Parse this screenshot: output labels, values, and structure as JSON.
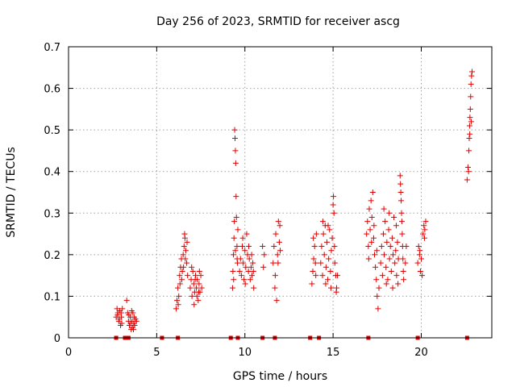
{
  "chart_data": {
    "type": "scatter",
    "title": "Day 256 of 2023, SRMTID for receiver ascg",
    "xlabel": "GPS time / hours",
    "ylabel": "SRMTID / TECUs",
    "xlim": [
      0,
      24
    ],
    "ylim": [
      0,
      0.7
    ],
    "xticks": [
      0,
      5,
      10,
      15,
      20
    ],
    "xtick_labels": [
      "0",
      "5",
      "10",
      "15",
      "20"
    ],
    "yticks": [
      0,
      0.1,
      0.2,
      0.3,
      0.4,
      0.5,
      0.6,
      0.7
    ],
    "ytick_labels": [
      "0",
      "0.1",
      "0.2",
      "0.3",
      "0.4",
      "0.5",
      "0.6",
      "0.7"
    ],
    "grid": true,
    "marker": "plus",
    "color": "#e00000",
    "zero_markers": [
      2.7,
      3.2,
      3.4,
      5.3,
      6.2,
      9.2,
      9.6,
      11.0,
      11.7,
      13.7,
      14.2,
      17.0,
      19.8,
      22.6
    ],
    "series": [
      {
        "name": "SRMTID",
        "points": [
          [
            2.7,
            0.05
          ],
          [
            2.75,
            0.07
          ],
          [
            2.8,
            0.06
          ],
          [
            2.85,
            0.04
          ],
          [
            2.9,
            0.065
          ],
          [
            2.95,
            0.03
          ],
          [
            3.0,
            0.05
          ],
          [
            3.05,
            0.07
          ],
          [
            2.78,
            0.055
          ],
          [
            2.88,
            0.045
          ],
          [
            2.98,
            0.06
          ],
          [
            3.02,
            0.035
          ],
          [
            3.3,
            0.09
          ],
          [
            3.35,
            0.06
          ],
          [
            3.4,
            0.04
          ],
          [
            3.45,
            0.03
          ],
          [
            3.5,
            0.05
          ],
          [
            3.55,
            0.02
          ],
          [
            3.6,
            0.04
          ],
          [
            3.65,
            0.06
          ],
          [
            3.7,
            0.035
          ],
          [
            3.75,
            0.03
          ],
          [
            3.8,
            0.045
          ],
          [
            3.85,
            0.04
          ],
          [
            3.42,
            0.055
          ],
          [
            3.52,
            0.035
          ],
          [
            3.62,
            0.025
          ],
          [
            3.72,
            0.05
          ],
          [
            3.58,
            0.065
          ],
          [
            3.68,
            0.02
          ],
          [
            6.1,
            0.07
          ],
          [
            6.15,
            0.09
          ],
          [
            6.2,
            0.12
          ],
          [
            6.25,
            0.1
          ],
          [
            6.3,
            0.15
          ],
          [
            6.35,
            0.17
          ],
          [
            6.4,
            0.19
          ],
          [
            6.45,
            0.16
          ],
          [
            6.5,
            0.2
          ],
          [
            6.55,
            0.22
          ],
          [
            6.6,
            0.24
          ],
          [
            6.65,
            0.21
          ],
          [
            6.7,
            0.18
          ],
          [
            6.75,
            0.15
          ],
          [
            6.22,
            0.08
          ],
          [
            6.32,
            0.13
          ],
          [
            6.42,
            0.14
          ],
          [
            6.52,
            0.17
          ],
          [
            6.62,
            0.19
          ],
          [
            6.58,
            0.25
          ],
          [
            6.72,
            0.23
          ],
          [
            6.9,
            0.12
          ],
          [
            6.95,
            0.14
          ],
          [
            7.0,
            0.1
          ],
          [
            7.05,
            0.16
          ],
          [
            7.1,
            0.13
          ],
          [
            7.15,
            0.11
          ],
          [
            7.2,
            0.15
          ],
          [
            7.25,
            0.12
          ],
          [
            7.3,
            0.14
          ],
          [
            7.35,
            0.09
          ],
          [
            7.4,
            0.13
          ],
          [
            7.45,
            0.11
          ],
          [
            7.5,
            0.15
          ],
          [
            7.55,
            0.12
          ],
          [
            6.98,
            0.17
          ],
          [
            7.12,
            0.08
          ],
          [
            7.28,
            0.1
          ],
          [
            7.42,
            0.16
          ],
          [
            7.18,
            0.14
          ],
          [
            7.38,
            0.11
          ],
          [
            9.3,
            0.12
          ],
          [
            9.32,
            0.16
          ],
          [
            9.35,
            0.2
          ],
          [
            9.38,
            0.24
          ],
          [
            9.4,
            0.28
          ],
          [
            9.42,
            0.5
          ],
          [
            9.44,
            0.48
          ],
          [
            9.46,
            0.45
          ],
          [
            9.48,
            0.42
          ],
          [
            9.5,
            0.34
          ],
          [
            9.52,
            0.29
          ],
          [
            9.55,
            0.22
          ],
          [
            9.58,
            0.18
          ],
          [
            9.6,
            0.26
          ],
          [
            9.36,
            0.14
          ],
          [
            9.46,
            0.21
          ],
          [
            9.56,
            0.19
          ],
          [
            9.7,
            0.16
          ],
          [
            9.75,
            0.19
          ],
          [
            9.8,
            0.15
          ],
          [
            9.85,
            0.22
          ],
          [
            9.9,
            0.18
          ],
          [
            9.95,
            0.14
          ],
          [
            10.0,
            0.21
          ],
          [
            10.05,
            0.17
          ],
          [
            10.1,
            0.25
          ],
          [
            10.15,
            0.2
          ],
          [
            10.2,
            0.16
          ],
          [
            10.25,
            0.19
          ],
          [
            10.3,
            0.14
          ],
          [
            10.35,
            0.17
          ],
          [
            10.4,
            0.15
          ],
          [
            10.45,
            0.18
          ],
          [
            10.5,
            0.12
          ],
          [
            9.88,
            0.24
          ],
          [
            10.02,
            0.13
          ],
          [
            10.22,
            0.22
          ],
          [
            10.38,
            0.2
          ],
          [
            10.48,
            0.16
          ],
          [
            11.0,
            0.22
          ],
          [
            11.05,
            0.17
          ],
          [
            11.1,
            0.2
          ],
          [
            11.6,
            0.18
          ],
          [
            11.65,
            0.22
          ],
          [
            11.7,
            0.12
          ],
          [
            11.75,
            0.25
          ],
          [
            11.8,
            0.09
          ],
          [
            11.85,
            0.2
          ],
          [
            11.9,
            0.28
          ],
          [
            11.95,
            0.23
          ],
          [
            12.0,
            0.21
          ],
          [
            11.72,
            0.15
          ],
          [
            11.88,
            0.18
          ],
          [
            11.98,
            0.27
          ],
          [
            13.8,
            0.13
          ],
          [
            13.85,
            0.16
          ],
          [
            13.9,
            0.19
          ],
          [
            13.95,
            0.22
          ],
          [
            14.0,
            0.18
          ],
          [
            14.05,
            0.25
          ],
          [
            13.88,
            0.24
          ],
          [
            14.02,
            0.15
          ],
          [
            14.3,
            0.18
          ],
          [
            14.35,
            0.22
          ],
          [
            14.4,
            0.15
          ],
          [
            14.45,
            0.25
          ],
          [
            14.5,
            0.2
          ],
          [
            14.55,
            0.27
          ],
          [
            14.6,
            0.17
          ],
          [
            14.65,
            0.23
          ],
          [
            14.7,
            0.14
          ],
          [
            14.75,
            0.19
          ],
          [
            14.8,
            0.26
          ],
          [
            14.85,
            0.16
          ],
          [
            14.9,
            0.21
          ],
          [
            14.95,
            0.24
          ],
          [
            15.0,
            0.32
          ],
          [
            15.05,
            0.3
          ],
          [
            15.1,
            0.18
          ],
          [
            15.15,
            0.15
          ],
          [
            15.2,
            0.12
          ],
          [
            15.25,
            0.15
          ],
          [
            14.42,
            0.28
          ],
          [
            14.58,
            0.13
          ],
          [
            14.72,
            0.27
          ],
          [
            14.88,
            0.12
          ],
          [
            15.02,
            0.34
          ],
          [
            15.08,
            0.22
          ],
          [
            15.18,
            0.11
          ],
          [
            16.9,
            0.25
          ],
          [
            16.95,
            0.28
          ],
          [
            17.0,
            0.22
          ],
          [
            17.05,
            0.31
          ],
          [
            17.1,
            0.26
          ],
          [
            17.15,
            0.33
          ],
          [
            17.2,
            0.29
          ],
          [
            17.25,
            0.35
          ],
          [
            17.3,
            0.24
          ],
          [
            17.35,
            0.2
          ],
          [
            17.4,
            0.17
          ],
          [
            17.45,
            0.14
          ],
          [
            17.5,
            0.1
          ],
          [
            17.55,
            0.07
          ],
          [
            17.6,
            0.12
          ],
          [
            17.02,
            0.19
          ],
          [
            17.18,
            0.23
          ],
          [
            17.32,
            0.27
          ],
          [
            17.48,
            0.21
          ],
          [
            17.7,
            0.18
          ],
          [
            17.75,
            0.22
          ],
          [
            17.8,
            0.15
          ],
          [
            17.85,
            0.25
          ],
          [
            17.9,
            0.2
          ],
          [
            17.95,
            0.28
          ],
          [
            18.0,
            0.17
          ],
          [
            18.05,
            0.23
          ],
          [
            18.1,
            0.14
          ],
          [
            18.15,
            0.26
          ],
          [
            18.2,
            0.19
          ],
          [
            18.25,
            0.22
          ],
          [
            18.3,
            0.16
          ],
          [
            18.35,
            0.24
          ],
          [
            18.4,
            0.2
          ],
          [
            18.45,
            0.29
          ],
          [
            18.5,
            0.18
          ],
          [
            18.55,
            0.21
          ],
          [
            18.6,
            0.15
          ],
          [
            18.65,
            0.23
          ],
          [
            18.7,
            0.19
          ],
          [
            17.88,
            0.31
          ],
          [
            18.02,
            0.13
          ],
          [
            18.18,
            0.3
          ],
          [
            18.38,
            0.12
          ],
          [
            18.58,
            0.27
          ],
          [
            18.68,
            0.13
          ],
          [
            18.8,
            0.39
          ],
          [
            18.82,
            0.37
          ],
          [
            18.84,
            0.35
          ],
          [
            18.86,
            0.33
          ],
          [
            18.88,
            0.3
          ],
          [
            18.9,
            0.28
          ],
          [
            18.92,
            0.25
          ],
          [
            18.94,
            0.22
          ],
          [
            18.96,
            0.19
          ],
          [
            18.98,
            0.16
          ],
          [
            19.0,
            0.14
          ],
          [
            19.1,
            0.18
          ],
          [
            19.15,
            0.22
          ],
          [
            19.8,
            0.18
          ],
          [
            19.85,
            0.22
          ],
          [
            19.9,
            0.2
          ],
          [
            19.95,
            0.16
          ],
          [
            20.0,
            0.19
          ],
          [
            20.05,
            0.15
          ],
          [
            20.1,
            0.25
          ],
          [
            20.15,
            0.27
          ],
          [
            20.2,
            0.26
          ],
          [
            20.25,
            0.28
          ],
          [
            20.18,
            0.24
          ],
          [
            19.92,
            0.21
          ],
          [
            22.6,
            0.38
          ],
          [
            22.65,
            0.41
          ],
          [
            22.7,
            0.45
          ],
          [
            22.72,
            0.48
          ],
          [
            22.74,
            0.51
          ],
          [
            22.76,
            0.53
          ],
          [
            22.78,
            0.55
          ],
          [
            22.8,
            0.58
          ],
          [
            22.82,
            0.61
          ],
          [
            22.85,
            0.63
          ],
          [
            22.88,
            0.64
          ],
          [
            22.68,
            0.4
          ],
          [
            22.75,
            0.49
          ],
          [
            22.83,
            0.52
          ]
        ]
      }
    ]
  }
}
